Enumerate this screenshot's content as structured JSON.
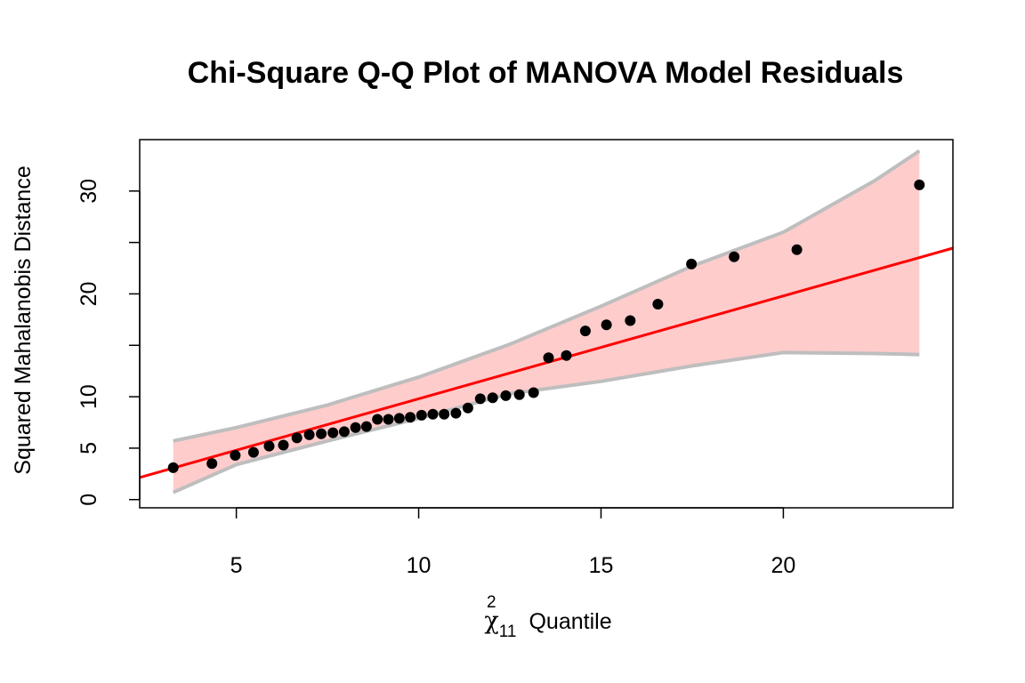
{
  "chart_data": {
    "type": "scatter",
    "title": "Chi-Square Q-Q Plot of MANOVA Model Residuals",
    "xlabel": "Quantile",
    "xlabel_symbol": "χ",
    "xlabel_superscript": "2",
    "xlabel_subscript": "11",
    "ylabel": "Squared Mahalanobis Distance",
    "xlim": [
      2.35,
      24.65
    ],
    "ylim": [
      -0.8,
      35
    ],
    "x_ticks": [
      5,
      10,
      15,
      20
    ],
    "x_tick_labels": [
      "5",
      "10",
      "15",
      "20"
    ],
    "y_ticks": [
      0,
      5,
      10,
      15,
      20,
      25,
      30
    ],
    "y_tick_labels": [
      "0",
      "5",
      "10",
      "",
      "20",
      "",
      "30"
    ],
    "grid": false,
    "colors": {
      "points": "#000000",
      "line": "#ff0000",
      "band_fill": "#ffcccc",
      "band_edge": "#bebebe"
    },
    "points": {
      "x": [
        3.27,
        4.33,
        4.97,
        5.47,
        5.9,
        6.29,
        6.66,
        7.0,
        7.33,
        7.65,
        7.96,
        8.27,
        8.57,
        8.87,
        9.17,
        9.47,
        9.77,
        10.08,
        10.39,
        10.7,
        11.02,
        11.35,
        11.69,
        12.03,
        12.39,
        12.76,
        13.15,
        13.56,
        14.05,
        14.57,
        15.15,
        15.8,
        16.56,
        17.48,
        18.65,
        20.37,
        23.73
      ],
      "y": [
        3.1,
        3.5,
        4.3,
        4.6,
        5.2,
        5.3,
        6.0,
        6.3,
        6.4,
        6.5,
        6.6,
        7.0,
        7.1,
        7.8,
        7.8,
        7.9,
        8.0,
        8.2,
        8.3,
        8.3,
        8.4,
        8.9,
        9.8,
        9.9,
        10.1,
        10.2,
        10.4,
        13.8,
        14.0,
        16.4,
        17.0,
        17.4,
        19.0,
        22.9,
        23.6,
        24.3,
        30.6
      ]
    },
    "reference_line": {
      "intercept": -0.2,
      "slope": 1.0
    },
    "confidence_band": {
      "x": [
        3.27,
        5.0,
        7.5,
        10.0,
        12.5,
        15.0,
        17.5,
        20.0,
        22.5,
        23.73
      ],
      "upper": [
        5.7,
        7.0,
        9.2,
        11.9,
        15.1,
        18.8,
        22.7,
        26.0,
        31.0,
        33.9
      ],
      "lower": [
        0.7,
        3.4,
        5.7,
        7.9,
        10.3,
        11.5,
        13.0,
        14.3,
        14.2,
        14.1
      ]
    }
  }
}
